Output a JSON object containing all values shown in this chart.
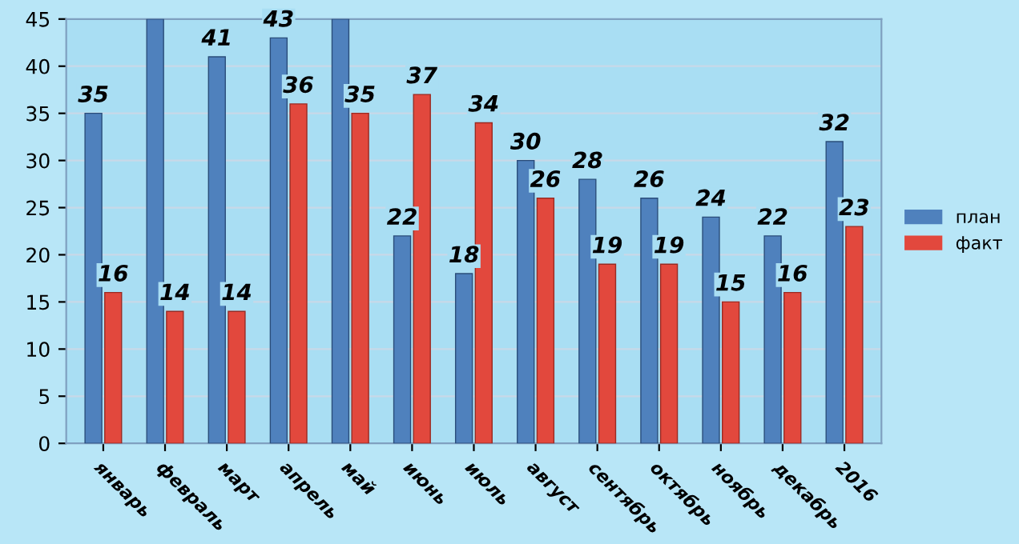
{
  "chart_data": {
    "type": "bar",
    "categories": [
      "январь",
      "февраль",
      "март",
      "апрель",
      "май",
      "июнь",
      "июль",
      "август",
      "сентябрь",
      "октябрь",
      "ноябрь",
      "декабрь",
      "2016"
    ],
    "series": [
      {
        "name": "план",
        "color": "#4f81bd",
        "values": [
          35,
          45,
          41,
          43,
          45,
          22,
          18,
          30,
          28,
          26,
          24,
          22,
          32
        ],
        "value_labels": [
          "35",
          null,
          "41",
          "43",
          null,
          "22",
          "18",
          "30",
          "28",
          "26",
          "24",
          "22",
          "32"
        ]
      },
      {
        "name": "факт",
        "color": "#e2483d",
        "values": [
          16,
          14,
          14,
          36,
          35,
          37,
          34,
          26,
          19,
          19,
          15,
          16,
          23
        ],
        "value_labels": [
          "16",
          "14",
          "14",
          "36",
          "35",
          "37",
          "34",
          "26",
          "19",
          "19",
          "15",
          "16",
          "23"
        ]
      }
    ],
    "ylim": [
      0,
      45
    ],
    "yticks": [
      0,
      5,
      10,
      15,
      20,
      25,
      30,
      35,
      40,
      45
    ],
    "grid": "y",
    "legend": "right"
  }
}
